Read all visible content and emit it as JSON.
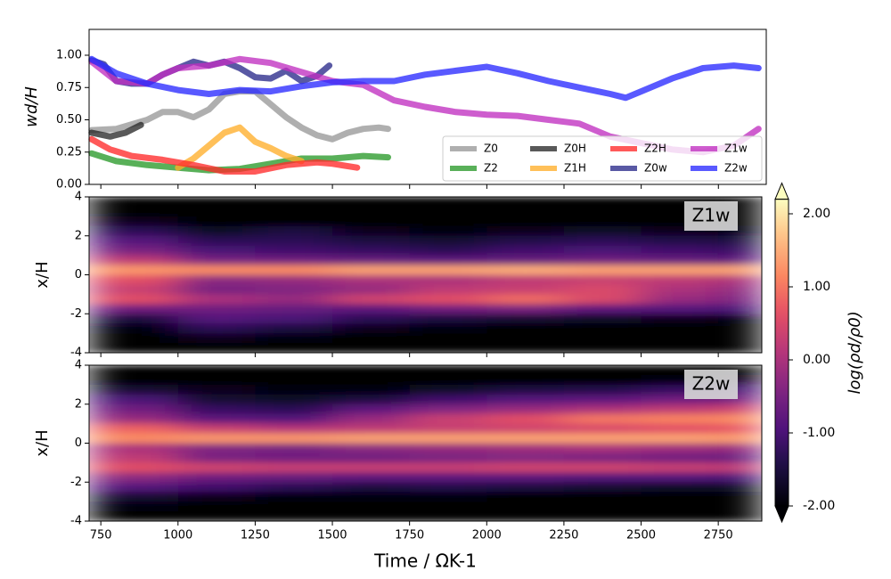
{
  "chart_data": [
    {
      "type": "line",
      "ylabel": "wd/H",
      "legend": "lower right",
      "xlim": [
        712,
        2905
      ],
      "xticks": [
        750,
        1000,
        1250,
        1500,
        1750,
        2000,
        2250,
        2500,
        2750
      ],
      "ylim": [
        0,
        1.2
      ],
      "yticks": [
        {
          "value": 0,
          "label": "0.00"
        },
        {
          "value": 0.25,
          "label": "0.25"
        },
        {
          "value": 0.5,
          "label": "0.50"
        },
        {
          "value": 0.75,
          "label": "0.75"
        },
        {
          "value": 1,
          "label": "1.00"
        }
      ],
      "series": [
        {
          "name": "Z0",
          "color": "#999999",
          "x": [
            720,
            800,
            900,
            950,
            1000,
            1050,
            1100,
            1150,
            1200,
            1250,
            1300,
            1350,
            1400,
            1450,
            1500,
            1550,
            1600,
            1650,
            1680
          ],
          "values": [
            0.42,
            0.43,
            0.5,
            0.56,
            0.56,
            0.52,
            0.58,
            0.7,
            0.72,
            0.72,
            0.62,
            0.52,
            0.44,
            0.38,
            0.35,
            0.4,
            0.43,
            0.44,
            0.43
          ]
        },
        {
          "name": "Z2",
          "color": "#2a9a2a",
          "x": [
            720,
            800,
            900,
            1000,
            1100,
            1200,
            1300,
            1400,
            1500,
            1600,
            1680
          ],
          "values": [
            0.24,
            0.18,
            0.15,
            0.13,
            0.11,
            0.12,
            0.16,
            0.2,
            0.2,
            0.22,
            0.21
          ]
        },
        {
          "name": "Z0H",
          "color": "#2a2a2a",
          "x": [
            720,
            780,
            830,
            880
          ],
          "values": [
            0.4,
            0.37,
            0.4,
            0.46
          ]
        },
        {
          "name": "Z1H",
          "color": "#ffae2a",
          "x": [
            1000,
            1050,
            1100,
            1150,
            1200,
            1250,
            1300,
            1350,
            1400
          ],
          "values": [
            0.13,
            0.2,
            0.3,
            0.4,
            0.44,
            0.33,
            0.28,
            0.22,
            0.18
          ]
        },
        {
          "name": "Z2H",
          "color": "#ff2a2a",
          "x": [
            720,
            780,
            850,
            950,
            1050,
            1150,
            1250,
            1350,
            1450,
            1500,
            1580
          ],
          "values": [
            0.35,
            0.27,
            0.22,
            0.19,
            0.15,
            0.1,
            0.1,
            0.15,
            0.17,
            0.16,
            0.13
          ]
        },
        {
          "name": "Z0w",
          "color": "#2a2a8a",
          "x": [
            720,
            760,
            800,
            850,
            900,
            950,
            1000,
            1050,
            1100,
            1150,
            1200,
            1250,
            1300,
            1350,
            1400,
            1450,
            1490
          ],
          "values": [
            0.96,
            0.93,
            0.8,
            0.78,
            0.78,
            0.85,
            0.9,
            0.95,
            0.92,
            0.95,
            0.9,
            0.83,
            0.82,
            0.88,
            0.8,
            0.84,
            0.92
          ]
        },
        {
          "name": "Z1w",
          "color": "#c030c0",
          "x": [
            720,
            800,
            900,
            950,
            1000,
            1100,
            1200,
            1300,
            1400,
            1500,
            1600,
            1700,
            1800,
            1900,
            2000,
            2100,
            2200,
            2300,
            2400,
            2500,
            2600,
            2700,
            2800,
            2880
          ],
          "values": [
            0.95,
            0.8,
            0.78,
            0.85,
            0.9,
            0.92,
            0.97,
            0.94,
            0.87,
            0.8,
            0.77,
            0.65,
            0.6,
            0.56,
            0.54,
            0.53,
            0.5,
            0.47,
            0.37,
            0.32,
            0.27,
            0.25,
            0.3,
            0.43
          ]
        },
        {
          "name": "Z2w",
          "color": "#2a2aff",
          "x": [
            720,
            800,
            900,
            1000,
            1100,
            1200,
            1300,
            1400,
            1500,
            1600,
            1700,
            1800,
            1900,
            2000,
            2100,
            2200,
            2300,
            2400,
            2450,
            2500,
            2600,
            2700,
            2800,
            2880
          ],
          "values": [
            0.97,
            0.86,
            0.78,
            0.73,
            0.7,
            0.73,
            0.72,
            0.76,
            0.79,
            0.8,
            0.8,
            0.85,
            0.88,
            0.91,
            0.86,
            0.8,
            0.75,
            0.7,
            0.67,
            0.72,
            0.82,
            0.9,
            0.92,
            0.9
          ]
        }
      ]
    },
    {
      "type": "heatmap",
      "annotation": "Z1w",
      "ylabel": "x/H",
      "colormap": "magma",
      "zlim": [
        -2,
        2.2
      ],
      "xlim": [
        712,
        2891
      ],
      "xticks": [
        750,
        1000,
        1250,
        1500,
        1750,
        2000,
        2250,
        2500,
        2750
      ],
      "ylim": [
        -4,
        4
      ],
      "yticks": [
        -4,
        -2,
        0,
        2,
        4
      ],
      "xbins": [
        712,
        1000,
        1250,
        1500,
        1750,
        2000,
        2250,
        2500,
        2750,
        2891
      ],
      "ybins": [
        4,
        3.5,
        3,
        2.5,
        2,
        1.5,
        1,
        0.5,
        0,
        -0.5,
        -1,
        -1.5,
        -2,
        -2.5,
        -3,
        -3.5,
        -4
      ],
      "z": [
        [
          -2,
          -2,
          -2,
          -2,
          -2,
          -2,
          -2,
          -2,
          -2
        ],
        [
          -2,
          -2,
          -2,
          -2,
          -2,
          -2,
          -2,
          -2,
          -2
        ],
        [
          -1.8,
          -2,
          -2,
          -2,
          -2,
          -2,
          -2,
          -2,
          -2
        ],
        [
          -1.3,
          -1.7,
          -1.5,
          -1.8,
          -1.9,
          -1.8,
          -1.7,
          -1.8,
          -1.9
        ],
        [
          -0.9,
          -1.3,
          -1.3,
          -1.5,
          -1.6,
          -1.4,
          -1.3,
          -1.4,
          -1.5
        ],
        [
          -0.5,
          -1,
          -1.1,
          -1.2,
          -1.3,
          -1.1,
          -1,
          -1.1,
          -1.2
        ],
        [
          0.2,
          -0.5,
          -0.6,
          -0.7,
          -0.8,
          -0.7,
          -0.6,
          -0.7,
          -0.8
        ],
        [
          1.3,
          1.2,
          1.2,
          1.4,
          1.4,
          1.5,
          1.4,
          1.4,
          1.4
        ],
        [
          0.6,
          -0.3,
          -0.2,
          0,
          0,
          0.2,
          0.3,
          0.2,
          0
        ],
        [
          0.3,
          -0.5,
          -0.4,
          -0.2,
          0.2,
          0.3,
          0.5,
          0,
          -0.3
        ],
        [
          0.6,
          0,
          -0.2,
          0.4,
          0.6,
          0.9,
          0.5,
          -0.2,
          -0.5
        ],
        [
          -0.6,
          -0.6,
          -0.7,
          -0.8,
          -0.6,
          -0.5,
          -0.8,
          -0.9,
          -1
        ],
        [
          -1.5,
          -0.9,
          -1,
          -1.3,
          -1.5,
          -1.6,
          -1.7,
          -1.8,
          -1.9
        ],
        [
          -1.9,
          -1.3,
          -1.5,
          -1.8,
          -1.9,
          -2,
          -2,
          -2,
          -2
        ],
        [
          -2,
          -1.8,
          -1.9,
          -2,
          -2,
          -2,
          -2,
          -2,
          -2
        ],
        [
          -2,
          -2,
          -2,
          -2,
          -2,
          -2,
          -2,
          -2,
          -2
        ]
      ]
    },
    {
      "type": "heatmap",
      "annotation": "Z2w",
      "ylabel": "x/H",
      "xlabel": "Time / ΩK-1",
      "colormap": "magma",
      "zlim": [
        -2,
        2.2
      ],
      "xlim": [
        712,
        2891
      ],
      "xticks": [
        750,
        1000,
        1250,
        1500,
        1750,
        2000,
        2250,
        2500,
        2750
      ],
      "ylim": [
        -4,
        4
      ],
      "yticks": [
        -4,
        -2,
        0,
        2,
        4
      ],
      "xbins": [
        712,
        1000,
        1250,
        1500,
        1750,
        2000,
        2250,
        2500,
        2750,
        2891
      ],
      "ybins": [
        4,
        3.5,
        3,
        2.5,
        2,
        1.5,
        1,
        0.5,
        0,
        -0.5,
        -1,
        -1.5,
        -2,
        -2.5,
        -3,
        -3.5,
        -4
      ],
      "z": [
        [
          -2,
          -2,
          -2,
          -2,
          -2,
          -2,
          -2,
          -2,
          -2
        ],
        [
          -2,
          -2,
          -2,
          -2,
          -2,
          -2,
          -2,
          -1.9,
          -1.8
        ],
        [
          -1.6,
          -1.8,
          -1.9,
          -1.9,
          -1.7,
          -1.5,
          -1.4,
          -1.2,
          -1
        ],
        [
          -1,
          -1.6,
          -1.7,
          -1.5,
          -1.1,
          -0.9,
          -0.8,
          -0.6,
          -0.5
        ],
        [
          -0.6,
          -1.2,
          -1.3,
          -0.8,
          -0.4,
          -0.2,
          0,
          0.2,
          0.4
        ],
        [
          -0.2,
          -0.8,
          -0.9,
          -0.2,
          0.3,
          0.6,
          1,
          1.1,
          1.2
        ],
        [
          0.8,
          0.3,
          0.1,
          0.2,
          0.3,
          0.4,
          0.5,
          0.6,
          0.7
        ],
        [
          1.2,
          1.3,
          1.3,
          1.4,
          1.4,
          1.4,
          1.4,
          1.4,
          1.3
        ],
        [
          0,
          -0.4,
          -0.5,
          -0.3,
          -0.2,
          -0.1,
          0,
          -0.1,
          -0.2
        ],
        [
          0.2,
          -0.5,
          -0.6,
          -0.6,
          -0.5,
          -0.4,
          -0.5,
          -0.6,
          -0.7
        ],
        [
          0.6,
          0.4,
          0.3,
          0.3,
          0.3,
          0.4,
          0.4,
          0.3,
          0.2
        ],
        [
          -0.3,
          -0.6,
          -0.7,
          -0.8,
          -0.8,
          -0.8,
          -0.9,
          -0.9,
          -1
        ],
        [
          -0.9,
          -1.1,
          -1.3,
          -1.5,
          -1.4,
          -1.5,
          -1.6,
          -1.7,
          -1.7
        ],
        [
          -1.6,
          -1.8,
          -1.9,
          -1.9,
          -1.9,
          -2,
          -2,
          -2,
          -2
        ],
        [
          -1.9,
          -2,
          -2,
          -2,
          -2,
          -2,
          -2,
          -2,
          -2
        ],
        [
          -2,
          -2,
          -2,
          -2,
          -2,
          -2,
          -2,
          -2,
          -2
        ]
      ]
    }
  ],
  "colorbar": {
    "label": "log(ρd/ρ0)",
    "zlim": [
      -2,
      2.2
    ],
    "zticks": [
      {
        "value": 2,
        "label": "2.00"
      },
      {
        "value": 1,
        "label": "1.00"
      },
      {
        "value": 0,
        "label": "0.00"
      },
      {
        "value": -1,
        "label": "-1.00"
      },
      {
        "value": -2,
        "label": "-2.00"
      }
    ]
  }
}
